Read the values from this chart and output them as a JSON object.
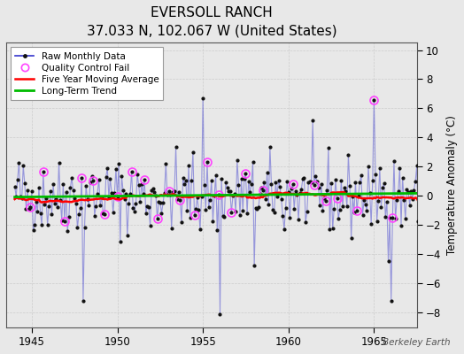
{
  "title": "EVERSOLL RANCH",
  "subtitle": "37.033 N, 102.067 W (United States)",
  "ylabel": "Temperature Anomaly (°C)",
  "watermark": "Berkeley Earth",
  "xlim": [
    1943.5,
    1967.5
  ],
  "ylim": [
    -9,
    10.5
  ],
  "yticks": [
    -8,
    -6,
    -4,
    -2,
    0,
    2,
    4,
    6,
    8,
    10
  ],
  "xticks": [
    1945,
    1950,
    1955,
    1960,
    1965
  ],
  "background_color": "#e8e8e8",
  "plot_bg_color": "#e8e8e8",
  "raw_color": "#3333cc",
  "raw_alpha": 0.45,
  "dot_color": "#111111",
  "qc_color": "#ff44ff",
  "ma_color": "#ff0000",
  "trend_color": "#00bb00",
  "start_year": 1944,
  "n_months": 288
}
